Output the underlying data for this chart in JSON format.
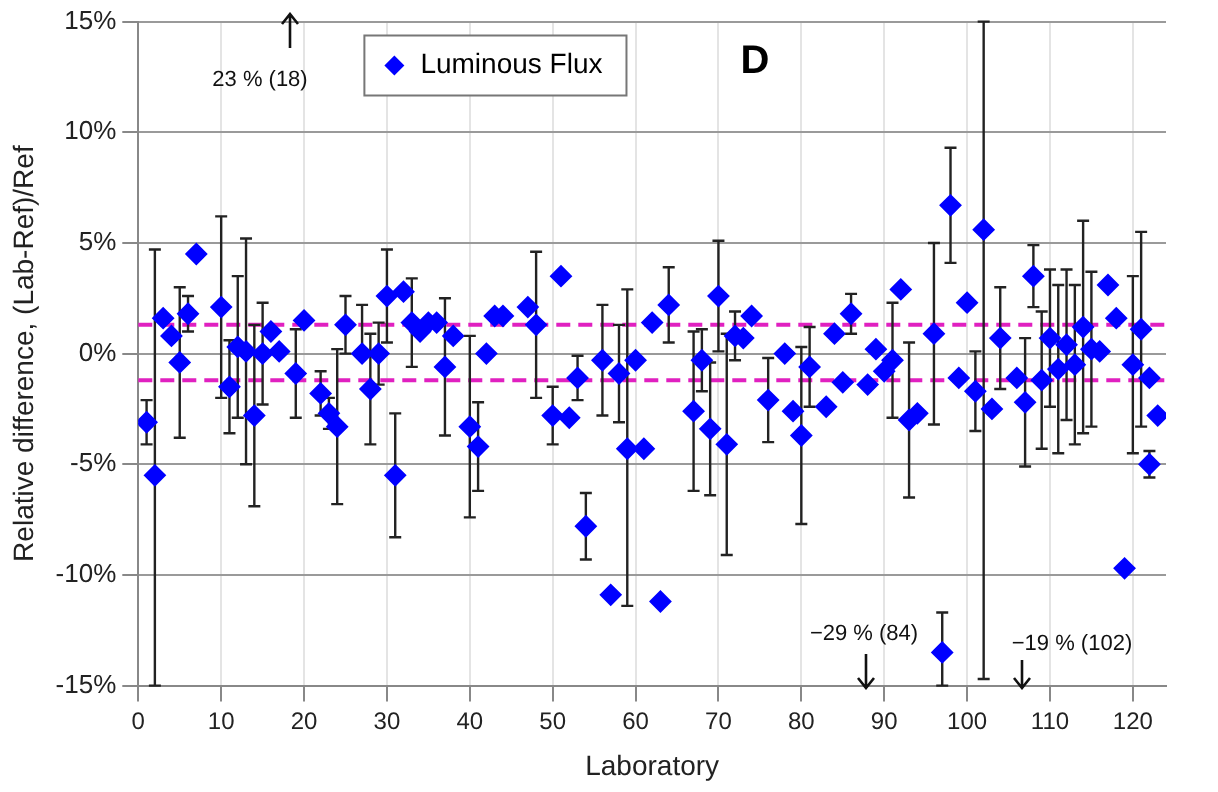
{
  "chart_data": {
    "type": "scatter",
    "title": "D",
    "xlabel": "Laboratory",
    "ylabel": "Relative difference, (Lab-Ref)/Ref",
    "xlim": [
      0,
      124
    ],
    "xticks": [
      0,
      10,
      20,
      30,
      40,
      50,
      60,
      70,
      80,
      90,
      100,
      110,
      120
    ],
    "ylim": [
      -15,
      15
    ],
    "yticks": [
      {
        "value": -15,
        "label": "-15%"
      },
      {
        "value": -10,
        "label": "-10%"
      },
      {
        "value": -5,
        "label": "-5%"
      },
      {
        "value": 0,
        "label": "0%"
      },
      {
        "value": 5,
        "label": "5%"
      },
      {
        "value": 10,
        "label": "10%"
      },
      {
        "value": 15,
        "label": "15%"
      }
    ],
    "grid": true,
    "legend": "top left",
    "marker": "diamond",
    "ref_lines": [
      {
        "axis": "y",
        "value": 1.3,
        "color": "#e020c0",
        "line_style": "dashed"
      },
      {
        "axis": "y",
        "value": -1.2,
        "color": "#e020c0",
        "line_style": "dashed"
      }
    ],
    "annotations": [
      "23 % (18)",
      "−29 % (84)",
      "−19 % (102)"
    ],
    "series": [
      {
        "name": "Luminous Flux",
        "color": "#0000ff",
        "x": [
          1,
          2,
          3,
          4,
          5,
          6,
          7,
          10,
          11,
          12,
          13,
          14,
          15,
          16,
          17,
          19,
          20,
          22,
          23,
          24,
          25,
          27,
          28,
          29,
          30,
          31,
          32,
          33,
          34,
          35,
          36,
          37,
          38,
          40,
          41,
          42,
          43,
          44,
          47,
          48,
          50,
          51,
          52,
          53,
          54,
          56,
          57,
          58,
          59,
          60,
          61,
          62,
          63,
          64,
          67,
          68,
          69,
          70,
          71,
          72,
          73,
          74,
          76,
          78,
          79,
          80,
          81,
          83,
          84,
          85,
          86,
          88,
          89,
          90,
          91,
          92,
          93,
          94,
          96,
          97,
          98,
          99,
          100,
          101,
          102,
          103,
          104,
          106,
          107,
          108,
          109,
          110,
          111,
          112,
          113,
          114,
          115,
          116,
          117,
          118,
          119,
          120,
          121,
          122,
          122,
          123
        ],
        "values": [
          -3.1,
          -5.5,
          1.6,
          0.8,
          -0.4,
          1.8,
          4.5,
          2.1,
          -1.5,
          0.3,
          0.1,
          -2.8,
          0.0,
          1.0,
          0.1,
          -0.9,
          1.5,
          -1.8,
          -2.7,
          -3.3,
          1.3,
          0.0,
          -1.6,
          0.0,
          2.6,
          -5.5,
          2.8,
          1.4,
          1.0,
          1.4,
          1.4,
          -0.6,
          0.8,
          -3.3,
          -4.2,
          0.0,
          1.7,
          1.7,
          2.1,
          1.3,
          -2.8,
          3.5,
          -2.9,
          -1.1,
          -7.8,
          -0.3,
          -10.9,
          -0.9,
          -4.3,
          -0.3,
          -4.3,
          1.4,
          -11.2,
          2.2,
          -2.6,
          -0.3,
          -3.4,
          2.6,
          -4.1,
          0.8,
          0.7,
          1.7,
          -2.1,
          0.0,
          -2.6,
          -3.7,
          -0.6,
          -2.4,
          0.9,
          -1.3,
          1.8,
          -1.4,
          0.2,
          -0.8,
          -0.3,
          2.9,
          -3.0,
          -2.7,
          0.9,
          -13.5,
          6.7,
          -1.1,
          2.3,
          -1.7,
          5.6,
          -2.5,
          0.7,
          -1.1,
          -2.2,
          3.5,
          -1.2,
          0.7,
          -0.7,
          0.4,
          -0.5,
          1.2,
          0.2,
          0.1,
          3.1,
          1.6,
          -9.7,
          -0.5,
          1.1,
          -1.1,
          -5.0,
          -2.8
        ],
        "errors": [
          1.0,
          [
            -15,
            4.7
          ],
          null,
          null,
          3.4,
          0.8,
          null,
          4.1,
          2.1,
          3.2,
          5.1,
          4.1,
          2.3,
          null,
          null,
          2.0,
          null,
          1.0,
          0.7,
          3.5,
          1.3,
          [
            0,
            2.2
          ],
          2.5,
          1.4,
          2.1,
          2.8,
          null,
          2.0,
          null,
          null,
          null,
          3.1,
          null,
          4.1,
          2.0,
          null,
          null,
          null,
          null,
          3.3,
          1.3,
          null,
          null,
          1.0,
          1.5,
          2.5,
          null,
          2.2,
          [
            -11.4,
            2.9
          ],
          null,
          null,
          null,
          null,
          1.7,
          3.6,
          1.4,
          3.0,
          2.5,
          5.0,
          1.1,
          null,
          null,
          1.9,
          null,
          null,
          4.0,
          1.8,
          null,
          null,
          null,
          0.9,
          null,
          null,
          null,
          2.6,
          null,
          3.5,
          null,
          4.1,
          [
            -15,
            -11.7
          ],
          2.6,
          null,
          null,
          1.8,
          [
            -14.7,
            15
          ],
          null,
          2.3,
          null,
          2.9,
          1.4,
          3.1,
          3.1,
          3.8,
          3.4,
          3.6,
          4.8,
          3.5,
          null,
          null,
          null,
          null,
          4.0,
          4.4,
          null,
          0.6,
          null
        ]
      }
    ]
  }
}
